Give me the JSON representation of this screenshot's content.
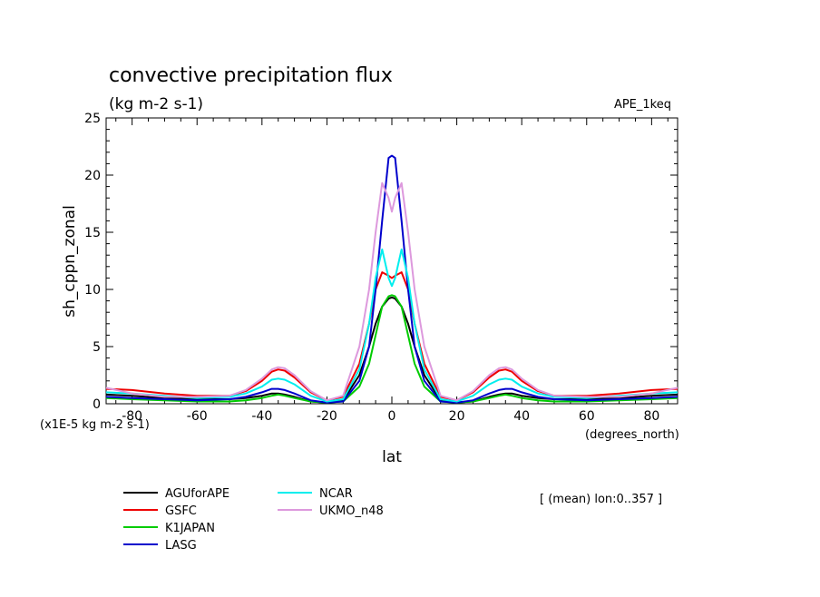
{
  "chart_data": {
    "type": "line",
    "title": "convective precipitation flux",
    "units": "(kg m-2 s-1)",
    "experiment": "APE_1keq",
    "ylabel": "sh_cppn_zonal",
    "xlabel": "lat",
    "scale_note": "(x1E-5 kg m-2 s-1)",
    "x_units": "(degrees_north)",
    "averaging_note": "[ (mean) lon:0..357 ]",
    "xlim": [
      -88,
      88
    ],
    "ylim": [
      0,
      25
    ],
    "xticks": [
      -80,
      -60,
      -40,
      -20,
      0,
      20,
      40,
      60,
      80
    ],
    "yticks": [
      0,
      5,
      10,
      15,
      20,
      25
    ],
    "grid": false,
    "legend_position": "bottom-left",
    "x": [
      -88,
      -80,
      -70,
      -60,
      -50,
      -45,
      -40,
      -37,
      -35,
      -33,
      -30,
      -25,
      -20,
      -15,
      -10,
      -7,
      -5,
      -3,
      -1,
      0,
      1,
      3,
      5,
      7,
      10,
      15,
      20,
      25,
      30,
      33,
      35,
      37,
      40,
      45,
      50,
      60,
      70,
      80,
      88
    ],
    "series": [
      {
        "name": "AGUforAPE",
        "color": "#000000",
        "values": [
          0.8,
          0.7,
          0.5,
          0.4,
          0.4,
          0.5,
          0.7,
          0.9,
          0.9,
          0.8,
          0.6,
          0.2,
          0.1,
          0.3,
          2.5,
          5.0,
          7.0,
          8.5,
          9.2,
          9.3,
          9.2,
          8.5,
          7.0,
          5.0,
          2.5,
          0.3,
          0.1,
          0.2,
          0.6,
          0.8,
          0.9,
          0.9,
          0.7,
          0.5,
          0.4,
          0.4,
          0.5,
          0.7,
          0.8
        ]
      },
      {
        "name": "GSFC",
        "color": "#ee0000",
        "values": [
          1.3,
          1.2,
          0.9,
          0.7,
          0.7,
          1.1,
          2.0,
          2.8,
          3.0,
          2.9,
          2.3,
          1.0,
          0.3,
          0.6,
          3.5,
          7.0,
          10.0,
          11.5,
          11.2,
          11.0,
          11.2,
          11.5,
          10.0,
          7.0,
          3.5,
          0.6,
          0.3,
          1.0,
          2.3,
          2.9,
          3.0,
          2.8,
          2.0,
          1.1,
          0.7,
          0.7,
          0.9,
          1.2,
          1.3
        ]
      },
      {
        "name": "K1JAPAN",
        "color": "#00cc00",
        "values": [
          0.5,
          0.4,
          0.3,
          0.2,
          0.2,
          0.3,
          0.5,
          0.7,
          0.8,
          0.7,
          0.5,
          0.2,
          0.1,
          0.2,
          1.5,
          3.5,
          6.0,
          8.5,
          9.4,
          9.5,
          9.4,
          8.5,
          6.0,
          3.5,
          1.5,
          0.2,
          0.1,
          0.2,
          0.5,
          0.7,
          0.8,
          0.7,
          0.5,
          0.3,
          0.2,
          0.2,
          0.3,
          0.4,
          0.5
        ]
      },
      {
        "name": "LASG",
        "color": "#0000cc",
        "values": [
          0.6,
          0.5,
          0.4,
          0.3,
          0.4,
          0.6,
          1.0,
          1.3,
          1.3,
          1.2,
          0.9,
          0.3,
          0.1,
          0.2,
          2.0,
          5.0,
          10.0,
          16.0,
          21.5,
          21.7,
          21.5,
          16.0,
          10.0,
          5.0,
          2.0,
          0.2,
          0.1,
          0.3,
          0.9,
          1.2,
          1.3,
          1.3,
          1.0,
          0.6,
          0.4,
          0.3,
          0.4,
          0.5,
          0.6
        ]
      },
      {
        "name": "NCAR",
        "color": "#00eeee",
        "values": [
          1.0,
          0.9,
          0.7,
          0.5,
          0.6,
          0.9,
          1.5,
          2.1,
          2.2,
          2.1,
          1.7,
          0.7,
          0.2,
          0.4,
          3.0,
          7.0,
          11.0,
          13.5,
          11.0,
          10.3,
          11.0,
          13.5,
          11.0,
          7.0,
          3.0,
          0.4,
          0.2,
          0.7,
          1.7,
          2.1,
          2.2,
          2.1,
          1.5,
          0.9,
          0.6,
          0.5,
          0.7,
          0.9,
          1.0
        ]
      },
      {
        "name": "UKMO_n48",
        "color": "#dd99dd",
        "values": [
          1.4,
          0.9,
          0.6,
          0.6,
          0.7,
          1.2,
          2.2,
          3.0,
          3.2,
          3.1,
          2.5,
          1.1,
          0.3,
          0.7,
          5.0,
          10.0,
          15.0,
          19.3,
          18.0,
          16.8,
          18.0,
          19.3,
          15.0,
          10.0,
          5.0,
          0.7,
          0.3,
          1.1,
          2.5,
          3.1,
          3.2,
          3.0,
          2.2,
          1.2,
          0.7,
          0.6,
          0.6,
          0.9,
          1.4
        ]
      }
    ]
  }
}
